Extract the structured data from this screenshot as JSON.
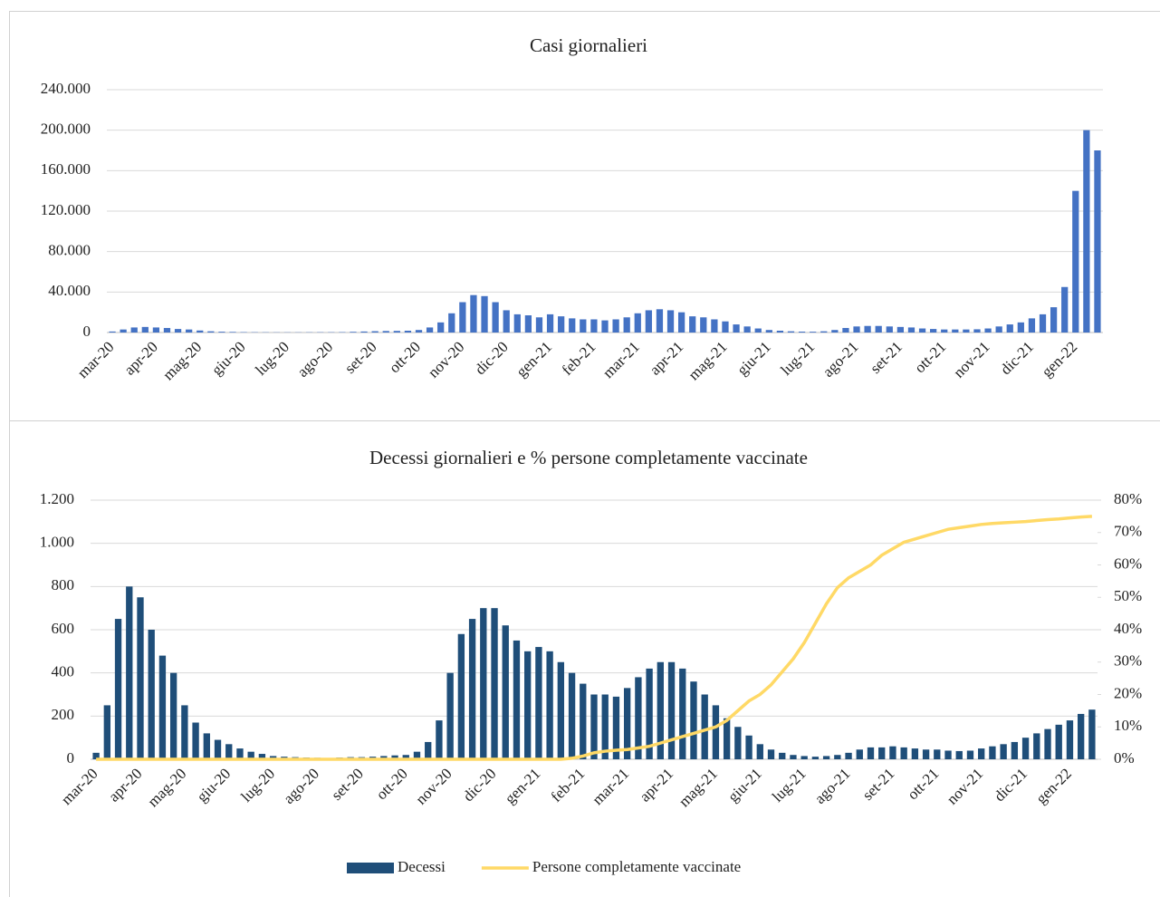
{
  "chart_data": [
    {
      "type": "bar",
      "title": "Casi giornalieri",
      "color": "#4472c4",
      "grid": true,
      "categories": [
        "mar-20",
        null,
        null,
        null,
        "apr-20",
        null,
        null,
        null,
        "mag-20",
        null,
        null,
        null,
        "giu-20",
        null,
        null,
        null,
        "lug-20",
        null,
        null,
        null,
        "ago-20",
        null,
        null,
        null,
        "set-20",
        null,
        null,
        null,
        "ott-20",
        null,
        null,
        null,
        "nov-20",
        null,
        null,
        null,
        "dic-20",
        null,
        null,
        null,
        "gen-21",
        null,
        null,
        null,
        "feb-21",
        null,
        null,
        null,
        "mar-21",
        null,
        null,
        null,
        "apr-21",
        null,
        null,
        null,
        "mag-21",
        null,
        null,
        null,
        "giu-21",
        null,
        null,
        null,
        "lug-21",
        null,
        null,
        null,
        "ago-21",
        null,
        null,
        null,
        "set-21",
        null,
        null,
        null,
        "ott-21",
        null,
        null,
        null,
        "nov-21",
        null,
        null,
        null,
        "dic-21",
        null,
        null,
        null,
        "gen-22",
        null,
        null
      ],
      "values": [
        1000,
        3000,
        5000,
        5500,
        5000,
        4500,
        3500,
        3000,
        2000,
        1200,
        800,
        600,
        400,
        300,
        250,
        200,
        200,
        200,
        250,
        300,
        300,
        400,
        700,
        1000,
        1300,
        1500,
        1600,
        1800,
        2500,
        5000,
        10000,
        19000,
        30000,
        37000,
        36000,
        30000,
        22000,
        18000,
        17000,
        15000,
        18000,
        16000,
        14000,
        13000,
        13000,
        12000,
        13000,
        15000,
        19000,
        22000,
        23000,
        22000,
        20000,
        16000,
        15000,
        13000,
        11000,
        8000,
        6000,
        4000,
        2500,
        1800,
        1200,
        900,
        800,
        1200,
        2500,
        4500,
        6000,
        6500,
        6500,
        6000,
        5500,
        5000,
        4000,
        3500,
        3000,
        3000,
        3000,
        3200,
        4000,
        6000,
        8000,
        10000,
        14000,
        18000,
        25000,
        45000,
        140000,
        200000,
        180000
      ],
      "ylim": [
        0,
        240000
      ],
      "yticks": [
        0,
        {
          "value": 40000,
          "label": "40.000"
        },
        {
          "value": 80000,
          "label": "80.000"
        },
        {
          "value": 120000,
          "label": "120.000"
        },
        {
          "value": 160000,
          "label": "160.000"
        },
        {
          "value": 200000,
          "label": "200.000"
        },
        {
          "value": 240000,
          "label": "240.000"
        }
      ]
    },
    {
      "type": "combo",
      "title": "Decessi giornalieri e % persone completamente vaccinate",
      "grid": true,
      "legend": "bottom",
      "categories": [
        "mar-20",
        null,
        null,
        null,
        "apr-20",
        null,
        null,
        null,
        "mag-20",
        null,
        null,
        null,
        "giu-20",
        null,
        null,
        null,
        "lug-20",
        null,
        null,
        null,
        "ago-20",
        null,
        null,
        null,
        "set-20",
        null,
        null,
        null,
        "ott-20",
        null,
        null,
        null,
        "nov-20",
        null,
        null,
        null,
        "dic-20",
        null,
        null,
        null,
        "gen-21",
        null,
        null,
        null,
        "feb-21",
        null,
        null,
        null,
        "mar-21",
        null,
        null,
        null,
        "apr-21",
        null,
        null,
        null,
        "mag-21",
        null,
        null,
        null,
        "giu-21",
        null,
        null,
        null,
        "lug-21",
        null,
        null,
        null,
        "ago-21",
        null,
        null,
        null,
        "set-21",
        null,
        null,
        null,
        "ott-21",
        null,
        null,
        null,
        "nov-21",
        null,
        null,
        null,
        "dic-21",
        null,
        null,
        null,
        "gen-22",
        null,
        null
      ],
      "series": [
        {
          "name": "Decessi",
          "type": "bar",
          "color": "#1f4e79",
          "values": [
            30,
            250,
            650,
            800,
            750,
            600,
            480,
            400,
            250,
            170,
            120,
            90,
            70,
            50,
            35,
            25,
            15,
            12,
            10,
            8,
            7,
            6,
            8,
            10,
            10,
            12,
            15,
            18,
            20,
            35,
            80,
            180,
            400,
            580,
            650,
            700,
            700,
            620,
            550,
            500,
            520,
            500,
            450,
            400,
            350,
            300,
            300,
            290,
            330,
            380,
            420,
            450,
            450,
            420,
            360,
            300,
            250,
            190,
            150,
            110,
            70,
            45,
            30,
            20,
            15,
            12,
            15,
            20,
            30,
            45,
            55,
            55,
            60,
            55,
            50,
            45,
            45,
            40,
            38,
            40,
            50,
            60,
            70,
            80,
            100,
            120,
            140,
            160,
            180,
            210,
            230
          ]
        },
        {
          "name": "Persone completamente vaccinate",
          "type": "line",
          "axis": "y2",
          "color": "#ffd966",
          "values": [
            0,
            0,
            0,
            0,
            0,
            0,
            0,
            0,
            0,
            0,
            0,
            0,
            0,
            0,
            0,
            0,
            0,
            0,
            0,
            0,
            0,
            0,
            0,
            0,
            0,
            0,
            0,
            0,
            0,
            0,
            0,
            0,
            0,
            0,
            0,
            0,
            0,
            0,
            0,
            0,
            0,
            0,
            0,
            0.3,
            1,
            2,
            2.5,
            2.8,
            3,
            3.5,
            4,
            5,
            6,
            7,
            8,
            9,
            10,
            12,
            15,
            18,
            20,
            23,
            27,
            31,
            36,
            42,
            48,
            53,
            56,
            58,
            60,
            63,
            65,
            67,
            68,
            69,
            70,
            71,
            71.5,
            72,
            72.5,
            72.8,
            73,
            73.2,
            73.4,
            73.7,
            74,
            74.2,
            74.5,
            74.8,
            75
          ]
        }
      ],
      "ylim": [
        0,
        1200
      ],
      "yticks": [
        0,
        200,
        400,
        600,
        800,
        {
          "value": 1000,
          "label": "1.000"
        },
        {
          "value": 1200,
          "label": "1.200"
        }
      ],
      "y2lim": [
        0,
        80
      ],
      "y2ticks": [
        {
          "value": 0,
          "label": "0%"
        },
        {
          "value": 10,
          "label": "10%"
        },
        {
          "value": 20,
          "label": "20%"
        },
        {
          "value": 30,
          "label": "30%"
        },
        {
          "value": 40,
          "label": "40%"
        },
        {
          "value": 50,
          "label": "50%"
        },
        {
          "value": 60,
          "label": "60%"
        },
        {
          "value": 70,
          "label": "70%"
        },
        {
          "value": 80,
          "label": "80%"
        }
      ]
    }
  ]
}
